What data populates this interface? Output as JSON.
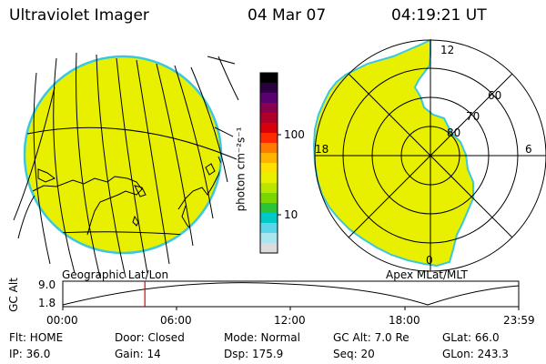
{
  "header": {
    "instrument": "Ultraviolet Imager",
    "date": "04 Mar 07",
    "time": "04:19:21 UT"
  },
  "colorbar": {
    "label": "photon cm⁻²s⁻¹",
    "ticks": [
      "100",
      "10"
    ],
    "colors": [
      "#000000",
      "#2a0040",
      "#5a0070",
      "#8a0050",
      "#b0002a",
      "#d8000a",
      "#ff2a00",
      "#ff7a00",
      "#ffb400",
      "#ffe000",
      "#e8f000",
      "#b8e600",
      "#7ad600",
      "#2ac43a",
      "#00c8c8",
      "#5ad6e8",
      "#a8e6f0",
      "#dcdcdc"
    ]
  },
  "geo_panel": {
    "caption": "Geographic Lat/Lon",
    "fill_color": "#e8f000",
    "edge_color": "#3ac8e0"
  },
  "polar_panel": {
    "caption": "Apex MLat/MLT",
    "mlt_labels": {
      "top": "12",
      "left": "18",
      "right": "6",
      "bottom": "0"
    },
    "lat_labels": [
      "60",
      "70",
      "80"
    ]
  },
  "altitude_plot": {
    "ylabel": "GC Alt",
    "yticks": [
      "9.0",
      "1.8"
    ],
    "xticks": [
      "00:00",
      "06:00",
      "12:00",
      "18:00",
      "23:59"
    ],
    "cursor_hour": 4.32,
    "cursor_color": "#e00000"
  },
  "info": {
    "flt": "Flt: HOME",
    "door": "Door: Closed",
    "mode": "Mode: Normal",
    "gc_alt": "GC Alt: 7.0 Re",
    "glat": "GLat:  66.0",
    "ip": "IP: 36.0",
    "gain": "Gain: 14",
    "dsp": "Dsp:   175.9",
    "seq": "Seq: 20",
    "glon": "GLon: 243.3"
  }
}
